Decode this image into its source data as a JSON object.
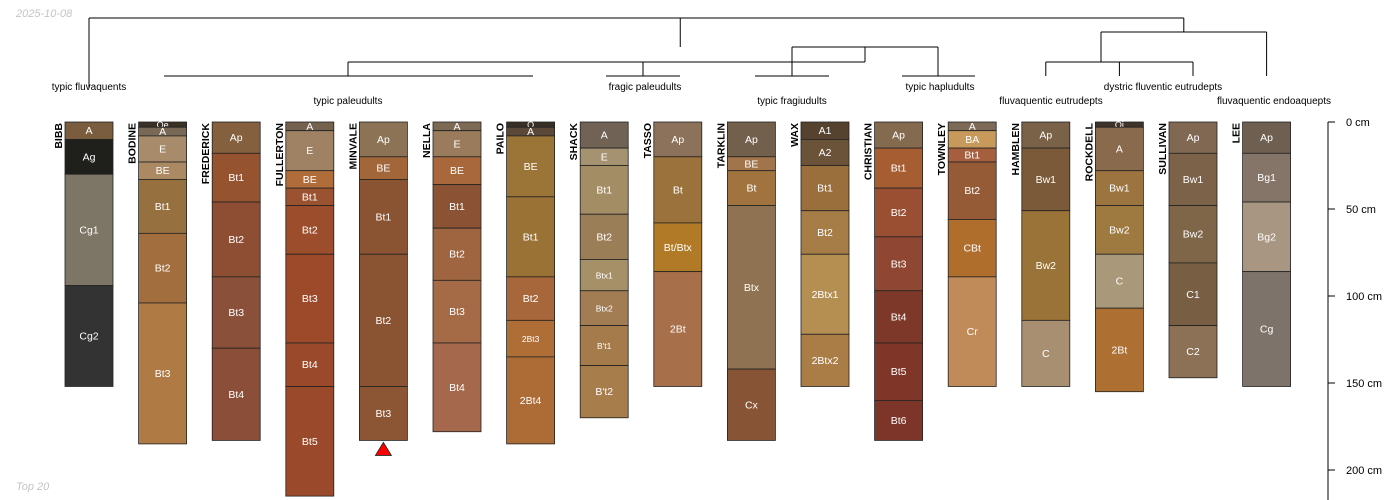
{
  "date": "2025-10-08",
  "caption": "Top 20",
  "depth_unit": "cm",
  "depth_axis": {
    "ticks": [
      0,
      50,
      100,
      150,
      200
    ],
    "max_depth": 215
  },
  "clusters": [
    {
      "label": "typic fluvaquents"
    },
    {
      "label": "typic paleudults"
    },
    {
      "label": "fragic paleudults"
    },
    {
      "label": "typic fragiudults"
    },
    {
      "label": "typic hapludults"
    },
    {
      "label": "fluvaquentic eutrudepts"
    },
    {
      "label": "dystric fluventic eutrudepts"
    },
    {
      "label": "fluvaquentic endoaquepts"
    }
  ],
  "profiles": [
    {
      "name": "BIBB",
      "horizons": [
        {
          "name": "A",
          "top": 0,
          "bottom": 10,
          "color": "#7a5c3e"
        },
        {
          "name": "Ag",
          "top": 10,
          "bottom": 30,
          "color": "#1f1f1c"
        },
        {
          "name": "Cg1",
          "top": 30,
          "bottom": 94,
          "color": "#7d7565"
        },
        {
          "name": "Cg2",
          "top": 94,
          "bottom": 152,
          "color": "#333333"
        }
      ]
    },
    {
      "name": "BODINE",
      "horizons": [
        {
          "name": "Oe",
          "top": 0,
          "bottom": 3,
          "color": "#3a3026"
        },
        {
          "name": "A",
          "top": 3,
          "bottom": 8,
          "color": "#7a6856"
        },
        {
          "name": "E",
          "top": 8,
          "bottom": 23,
          "color": "#a88b6a"
        },
        {
          "name": "BE",
          "top": 23,
          "bottom": 33,
          "color": "#ab8963"
        },
        {
          "name": "Bt1",
          "top": 33,
          "bottom": 64,
          "color": "#96713f"
        },
        {
          "name": "Bt2",
          "top": 64,
          "bottom": 104,
          "color": "#a36e3e"
        },
        {
          "name": "Bt3",
          "top": 104,
          "bottom": 185,
          "color": "#b07a45"
        }
      ]
    },
    {
      "name": "FREDERICK",
      "horizons": [
        {
          "name": "Ap",
          "top": 0,
          "bottom": 18,
          "color": "#84603f"
        },
        {
          "name": "Bt1",
          "top": 18,
          "bottom": 46,
          "color": "#96532f"
        },
        {
          "name": "Bt2",
          "top": 46,
          "bottom": 89,
          "color": "#8e4e34"
        },
        {
          "name": "Bt3",
          "top": 89,
          "bottom": 130,
          "color": "#8b503a"
        },
        {
          "name": "Bt4",
          "top": 130,
          "bottom": 183,
          "color": "#8b4f39"
        }
      ]
    },
    {
      "name": "FULLERTON",
      "horizons": [
        {
          "name": "A",
          "top": 0,
          "bottom": 5,
          "color": "#75624e"
        },
        {
          "name": "E",
          "top": 5,
          "bottom": 28,
          "color": "#9e8263"
        },
        {
          "name": "BE",
          "top": 28,
          "bottom": 38,
          "color": "#b06d3a"
        },
        {
          "name": "Bt1",
          "top": 38,
          "bottom": 48,
          "color": "#9b5230"
        },
        {
          "name": "Bt2",
          "top": 48,
          "bottom": 76,
          "color": "#9b4d2c"
        },
        {
          "name": "Bt3",
          "top": 76,
          "bottom": 127,
          "color": "#9c4a2a"
        },
        {
          "name": "Bt4",
          "top": 127,
          "bottom": 152,
          "color": "#9a4a2a"
        },
        {
          "name": "Bt5",
          "top": 152,
          "bottom": 215,
          "color": "#9a4a2a"
        }
      ]
    },
    {
      "name": "MINVALE",
      "horizons": [
        {
          "name": "Ap",
          "top": 0,
          "bottom": 20,
          "color": "#8c7355"
        },
        {
          "name": "BE",
          "top": 20,
          "bottom": 33,
          "color": "#a2663a"
        },
        {
          "name": "Bt1",
          "top": 33,
          "bottom": 76,
          "color": "#8a5332"
        },
        {
          "name": "Bt2",
          "top": 76,
          "bottom": 152,
          "color": "#8a5332"
        },
        {
          "name": "Bt3",
          "top": 152,
          "bottom": 183,
          "color": "#8c5534"
        }
      ]
    },
    {
      "name": "NELLA",
      "horizons": [
        {
          "name": "A",
          "top": 0,
          "bottom": 5,
          "color": "#7c6a54"
        },
        {
          "name": "E",
          "top": 5,
          "bottom": 20,
          "color": "#9a7b5b"
        },
        {
          "name": "BE",
          "top": 20,
          "bottom": 36,
          "color": "#a8683b"
        },
        {
          "name": "Bt1",
          "top": 36,
          "bottom": 61,
          "color": "#8b5333"
        },
        {
          "name": "Bt2",
          "top": 61,
          "bottom": 91,
          "color": "#9f6541"
        },
        {
          "name": "Bt3",
          "top": 91,
          "bottom": 127,
          "color": "#a56a46"
        },
        {
          "name": "Bt4",
          "top": 127,
          "bottom": 178,
          "color": "#a6684c"
        }
      ]
    },
    {
      "name": "PAILO",
      "horizons": [
        {
          "name": "O",
          "top": 0,
          "bottom": 3,
          "color": "#3a2f25"
        },
        {
          "name": "A",
          "top": 3,
          "bottom": 8,
          "color": "#5b4838"
        },
        {
          "name": "BE",
          "top": 8,
          "bottom": 43,
          "color": "#9b7438"
        },
        {
          "name": "Bt1",
          "top": 43,
          "bottom": 89,
          "color": "#9a7236"
        },
        {
          "name": "Bt2",
          "top": 89,
          "bottom": 114,
          "color": "#a7673a"
        },
        {
          "name": "2Bt3",
          "top": 114,
          "bottom": 135,
          "color": "#b06e37"
        },
        {
          "name": "2Bt4",
          "top": 135,
          "bottom": 185,
          "color": "#ad6b36"
        }
      ]
    },
    {
      "name": "SHACK",
      "horizons": [
        {
          "name": "A",
          "top": 0,
          "bottom": 15,
          "color": "#706355"
        },
        {
          "name": "E",
          "top": 15,
          "bottom": 25,
          "color": "#a49270"
        },
        {
          "name": "Bt1",
          "top": 25,
          "bottom": 53,
          "color": "#a38d64"
        },
        {
          "name": "Bt2",
          "top": 53,
          "bottom": 79,
          "color": "#9a7e58"
        },
        {
          "name": "Btx1",
          "top": 79,
          "bottom": 97,
          "color": "#a69067"
        },
        {
          "name": "Btx2",
          "top": 97,
          "bottom": 117,
          "color": "#a27d54"
        },
        {
          "name": "B't1",
          "top": 117,
          "bottom": 140,
          "color": "#a57b4c"
        },
        {
          "name": "B't2",
          "top": 140,
          "bottom": 170,
          "color": "#a87d4c"
        }
      ]
    },
    {
      "name": "TASSO",
      "horizons": [
        {
          "name": "Ap",
          "top": 0,
          "bottom": 20,
          "color": "#8c715b"
        },
        {
          "name": "Bt",
          "top": 20,
          "bottom": 58,
          "color": "#9c723c"
        },
        {
          "name": "Bt/Btx",
          "top": 58,
          "bottom": 86,
          "color": "#b07a26"
        },
        {
          "name": "2Bt",
          "top": 86,
          "bottom": 152,
          "color": "#a76f4a"
        }
      ]
    },
    {
      "name": "TARKLIN",
      "horizons": [
        {
          "name": "Ap",
          "top": 0,
          "bottom": 20,
          "color": "#73604c"
        },
        {
          "name": "BE",
          "top": 20,
          "bottom": 28,
          "color": "#a1744b"
        },
        {
          "name": "Bt",
          "top": 28,
          "bottom": 48,
          "color": "#a1743f"
        },
        {
          "name": "Btx",
          "top": 48,
          "bottom": 142,
          "color": "#8e7251"
        },
        {
          "name": "Cx",
          "top": 142,
          "bottom": 183,
          "color": "#875536"
        }
      ]
    },
    {
      "name": "WAX",
      "horizons": [
        {
          "name": "A1",
          "top": 0,
          "bottom": 10,
          "color": "#56432f"
        },
        {
          "name": "A2",
          "top": 10,
          "bottom": 25,
          "color": "#6a5339"
        },
        {
          "name": "Bt1",
          "top": 25,
          "bottom": 51,
          "color": "#9a6f3c"
        },
        {
          "name": "Bt2",
          "top": 51,
          "bottom": 76,
          "color": "#a67d47"
        },
        {
          "name": "2Btx1",
          "top": 76,
          "bottom": 122,
          "color": "#b58e52"
        },
        {
          "name": "2Btx2",
          "top": 122,
          "bottom": 152,
          "color": "#aa7c46"
        }
      ]
    },
    {
      "name": "CHRISTIAN",
      "horizons": [
        {
          "name": "Ap",
          "top": 0,
          "bottom": 15,
          "color": "#846a4f"
        },
        {
          "name": "Bt1",
          "top": 15,
          "bottom": 38,
          "color": "#a65d32"
        },
        {
          "name": "Bt2",
          "top": 38,
          "bottom": 66,
          "color": "#9a4e32"
        },
        {
          "name": "Bt3",
          "top": 66,
          "bottom": 97,
          "color": "#8f4733"
        },
        {
          "name": "Bt4",
          "top": 97,
          "bottom": 127,
          "color": "#7e3829"
        },
        {
          "name": "Bt5",
          "top": 127,
          "bottom": 160,
          "color": "#7f3528"
        },
        {
          "name": "Bt6",
          "top": 160,
          "bottom": 183,
          "color": "#7e3529"
        }
      ]
    },
    {
      "name": "TOWNLEY",
      "horizons": [
        {
          "name": "A",
          "top": 0,
          "bottom": 5,
          "color": "#7c6a56"
        },
        {
          "name": "BA",
          "top": 5,
          "bottom": 15,
          "color": "#c79a5c"
        },
        {
          "name": "Bt1",
          "top": 15,
          "bottom": 23,
          "color": "#a65f3e"
        },
        {
          "name": "Bt2",
          "top": 23,
          "bottom": 56,
          "color": "#955b37"
        },
        {
          "name": "CBt",
          "top": 56,
          "bottom": 89,
          "color": "#b06e2c"
        },
        {
          "name": "Cr",
          "top": 89,
          "bottom": 152,
          "color": "#c18b59"
        }
      ]
    },
    {
      "name": "HAMBLEN",
      "horizons": [
        {
          "name": "Ap",
          "top": 0,
          "bottom": 15,
          "color": "#7a6248"
        },
        {
          "name": "Bw1",
          "top": 15,
          "bottom": 51,
          "color": "#7a5a39"
        },
        {
          "name": "Bw2",
          "top": 51,
          "bottom": 114,
          "color": "#9a7338"
        },
        {
          "name": "C",
          "top": 114,
          "bottom": 152,
          "color": "#a88f72"
        }
      ]
    },
    {
      "name": "ROCKDELL",
      "horizons": [
        {
          "name": "Oi",
          "top": 0,
          "bottom": 3,
          "color": "#3e3429"
        },
        {
          "name": "A",
          "top": 3,
          "bottom": 28,
          "color": "#8a6a4c"
        },
        {
          "name": "Bw1",
          "top": 28,
          "bottom": 48,
          "color": "#9c7440"
        },
        {
          "name": "Bw2",
          "top": 48,
          "bottom": 76,
          "color": "#9f7a40"
        },
        {
          "name": "C",
          "top": 76,
          "bottom": 107,
          "color": "#a9987a"
        },
        {
          "name": "2Bt",
          "top": 107,
          "bottom": 155,
          "color": "#ad7032"
        }
      ]
    },
    {
      "name": "SULLIVAN",
      "horizons": [
        {
          "name": "Ap",
          "top": 0,
          "bottom": 18,
          "color": "#806852"
        },
        {
          "name": "Bw1",
          "top": 18,
          "bottom": 48,
          "color": "#7c6248"
        },
        {
          "name": "Bw2",
          "top": 48,
          "bottom": 81,
          "color": "#7f6648"
        },
        {
          "name": "C1",
          "top": 81,
          "bottom": 117,
          "color": "#785e43"
        },
        {
          "name": "C2",
          "top": 117,
          "bottom": 147,
          "color": "#8c7156"
        }
      ]
    },
    {
      "name": "LEE",
      "horizons": [
        {
          "name": "Ap",
          "top": 0,
          "bottom": 18,
          "color": "#6f5f51"
        },
        {
          "name": "Bg1",
          "top": 18,
          "bottom": 46,
          "color": "#857568"
        },
        {
          "name": "Bg2",
          "top": 46,
          "bottom": 86,
          "color": "#a89582"
        },
        {
          "name": "Cg",
          "top": 86,
          "bottom": 152,
          "color": "#7d736a"
        }
      ]
    }
  ]
}
